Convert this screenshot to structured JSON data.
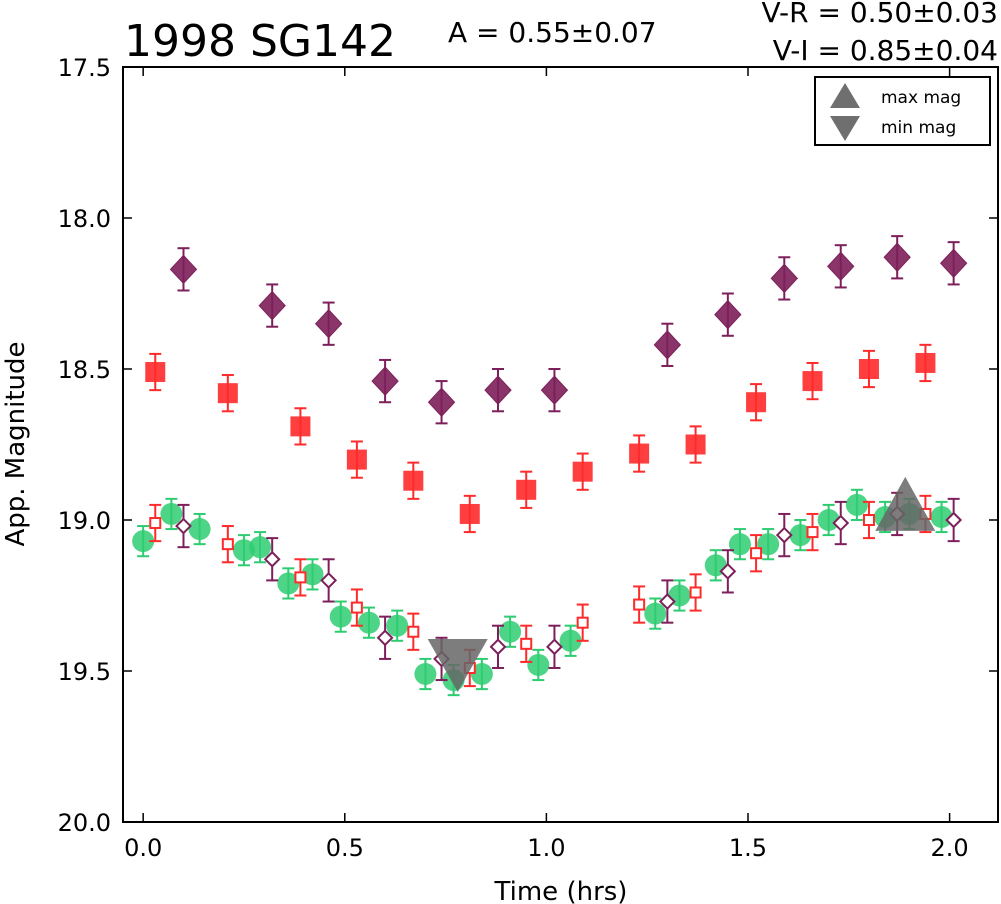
{
  "chart_data": {
    "type": "scatter",
    "title": "1998 SG142",
    "amplitude_label": "A  = 0.55±0.07",
    "color_indices": [
      "V-R = 0.50±0.03",
      "V-I  = 0.85±0.04"
    ],
    "xlabel": "Time (hrs)",
    "ylabel": "App. Magnitude",
    "xlim": [
      -0.05,
      2.12
    ],
    "ylim": [
      20.0,
      17.5
    ],
    "y_inverted": true,
    "xticks": [
      "0.0",
      "0.5",
      "1.0",
      "1.5",
      "2.0"
    ],
    "yticks": [
      "17.5",
      "18.0",
      "18.5",
      "19.0",
      "19.5",
      "20.0"
    ],
    "grid": false,
    "legend_position": "top-right",
    "legend": [
      {
        "label": "max mag",
        "marker": "triangle-up",
        "color": "#6f6f6f"
      },
      {
        "label": "min mag",
        "marker": "triangle-down",
        "color": "#6f6f6f"
      }
    ],
    "colors": {
      "green": "#2ecc71",
      "red": "#ff2a2a",
      "purple": "#7d1f5a",
      "extrema": "#666666"
    },
    "series": [
      {
        "marker": "diamond-filled",
        "color": "#7d1f5a",
        "points": [
          [
            0.1,
            18.17,
            0.07
          ],
          [
            0.32,
            18.29,
            0.07
          ],
          [
            0.46,
            18.35,
            0.07
          ],
          [
            0.6,
            18.54,
            0.07
          ],
          [
            0.74,
            18.61,
            0.07
          ],
          [
            0.88,
            18.57,
            0.07
          ],
          [
            1.02,
            18.57,
            0.07
          ],
          [
            1.3,
            18.42,
            0.07
          ],
          [
            1.45,
            18.32,
            0.07
          ],
          [
            1.59,
            18.2,
            0.07
          ],
          [
            1.73,
            18.16,
            0.07
          ],
          [
            1.87,
            18.13,
            0.07
          ],
          [
            2.01,
            18.15,
            0.07
          ]
        ]
      },
      {
        "marker": "square-filled",
        "color": "#ff2a2a",
        "points": [
          [
            0.03,
            18.51,
            0.06
          ],
          [
            0.21,
            18.58,
            0.06
          ],
          [
            0.39,
            18.69,
            0.06
          ],
          [
            0.53,
            18.8,
            0.06
          ],
          [
            0.67,
            18.87,
            0.06
          ],
          [
            0.81,
            18.98,
            0.06
          ],
          [
            0.95,
            18.9,
            0.06
          ],
          [
            1.09,
            18.84,
            0.06
          ],
          [
            1.23,
            18.78,
            0.06
          ],
          [
            1.37,
            18.75,
            0.06
          ],
          [
            1.52,
            18.61,
            0.06
          ],
          [
            1.66,
            18.54,
            0.06
          ],
          [
            1.8,
            18.5,
            0.06
          ],
          [
            1.94,
            18.48,
            0.06
          ]
        ]
      },
      {
        "marker": "circle-filled",
        "color": "#2ecc71",
        "points": [
          [
            -0.0,
            19.07,
            0.05
          ],
          [
            0.07,
            18.98,
            0.05
          ],
          [
            0.14,
            19.03,
            0.05
          ],
          [
            0.25,
            19.1,
            0.05
          ],
          [
            0.29,
            19.09,
            0.05
          ],
          [
            0.36,
            19.21,
            0.05
          ],
          [
            0.42,
            19.18,
            0.05
          ],
          [
            0.49,
            19.32,
            0.05
          ],
          [
            0.56,
            19.34,
            0.05
          ],
          [
            0.63,
            19.35,
            0.05
          ],
          [
            0.7,
            19.51,
            0.05
          ],
          [
            0.77,
            19.53,
            0.05
          ],
          [
            0.84,
            19.51,
            0.05
          ],
          [
            0.91,
            19.37,
            0.05
          ],
          [
            0.98,
            19.48,
            0.05
          ],
          [
            1.06,
            19.4,
            0.05
          ],
          [
            1.27,
            19.31,
            0.05
          ],
          [
            1.33,
            19.25,
            0.05
          ],
          [
            1.42,
            19.15,
            0.05
          ],
          [
            1.48,
            19.08,
            0.05
          ],
          [
            1.55,
            19.08,
            0.05
          ],
          [
            1.63,
            19.05,
            0.05
          ],
          [
            1.7,
            19.0,
            0.05
          ],
          [
            1.77,
            18.95,
            0.05
          ],
          [
            1.84,
            18.99,
            0.05
          ],
          [
            1.9,
            18.98,
            0.05
          ],
          [
            1.98,
            18.99,
            0.05
          ]
        ]
      },
      {
        "marker": "square-open",
        "color": "#ff2a2a",
        "points": [
          [
            0.03,
            19.01,
            0.06
          ],
          [
            0.21,
            19.08,
            0.06
          ],
          [
            0.39,
            19.19,
            0.06
          ],
          [
            0.53,
            19.29,
            0.06
          ],
          [
            0.67,
            19.37,
            0.06
          ],
          [
            0.81,
            19.49,
            0.06
          ],
          [
            0.95,
            19.41,
            0.06
          ],
          [
            1.09,
            19.34,
            0.06
          ],
          [
            1.23,
            19.28,
            0.06
          ],
          [
            1.37,
            19.24,
            0.06
          ],
          [
            1.52,
            19.11,
            0.06
          ],
          [
            1.66,
            19.04,
            0.06
          ],
          [
            1.8,
            19.0,
            0.06
          ],
          [
            1.94,
            18.98,
            0.06
          ]
        ]
      },
      {
        "marker": "diamond-open",
        "color": "#7d1f5a",
        "points": [
          [
            0.1,
            19.02,
            0.07
          ],
          [
            0.32,
            19.13,
            0.07
          ],
          [
            0.46,
            19.2,
            0.07
          ],
          [
            0.6,
            19.39,
            0.07
          ],
          [
            0.74,
            19.46,
            0.07
          ],
          [
            0.88,
            19.42,
            0.07
          ],
          [
            1.02,
            19.42,
            0.07
          ],
          [
            1.3,
            19.27,
            0.07
          ],
          [
            1.45,
            19.17,
            0.07
          ],
          [
            1.59,
            19.05,
            0.07
          ],
          [
            1.73,
            19.01,
            0.07
          ],
          [
            1.87,
            18.98,
            0.07
          ],
          [
            2.01,
            19.0,
            0.07
          ]
        ]
      }
    ],
    "extrema_markers": [
      {
        "kind": "min mag",
        "marker": "triangle-down",
        "x": 0.78,
        "y": 19.47
      },
      {
        "kind": "max mag",
        "marker": "triangle-up",
        "x": 1.89,
        "y": 18.95
      }
    ]
  }
}
